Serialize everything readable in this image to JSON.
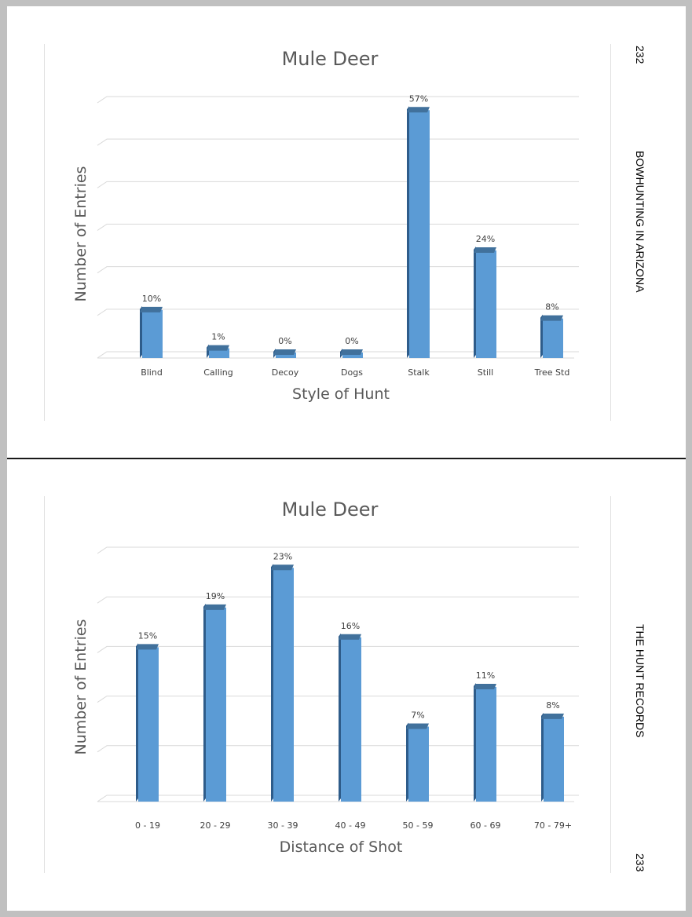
{
  "pages": {
    "top": {
      "page_number": "232",
      "running_header": "BOWHUNTING IN ARIZONA"
    },
    "bottom": {
      "page_number": "233",
      "running_header": "THE HUNT RECORDS"
    }
  },
  "colors": {
    "bar_front": "#5b9bd5",
    "bar_side": "#2e5c8a",
    "bar_top": "#41719c",
    "gridline": "#d9d9d9",
    "title": "#595959"
  },
  "chart_data": [
    {
      "type": "bar",
      "title": "Mule Deer",
      "xlabel": "Style of Hunt",
      "ylabel": "Number of Entries",
      "categories": [
        "Blind",
        "Calling",
        "Decoy",
        "Dogs",
        "Stalk",
        "Still",
        "Tree Std"
      ],
      "values": [
        10,
        1,
        0,
        0,
        57,
        24,
        8
      ],
      "data_labels": [
        "10%",
        "1%",
        "0%",
        "0%",
        "57%",
        "24%",
        "8%"
      ],
      "ylim": [
        0,
        60
      ],
      "grid": true,
      "style": "3d-column"
    },
    {
      "type": "bar",
      "title": "Mule Deer",
      "xlabel": "Distance of Shot",
      "ylabel": "Number of Entries",
      "categories": [
        "0 - 19",
        "20 - 29",
        "30 - 39",
        "40 - 49",
        "50 - 59",
        "60 - 69",
        "70 - 79+"
      ],
      "values": [
        15,
        19,
        23,
        16,
        7,
        11,
        8
      ],
      "data_labels": [
        "15%",
        "19%",
        "23%",
        "16%",
        "7%",
        "11%",
        "8%"
      ],
      "ylim": [
        0,
        25
      ],
      "grid": true,
      "style": "3d-column"
    }
  ]
}
